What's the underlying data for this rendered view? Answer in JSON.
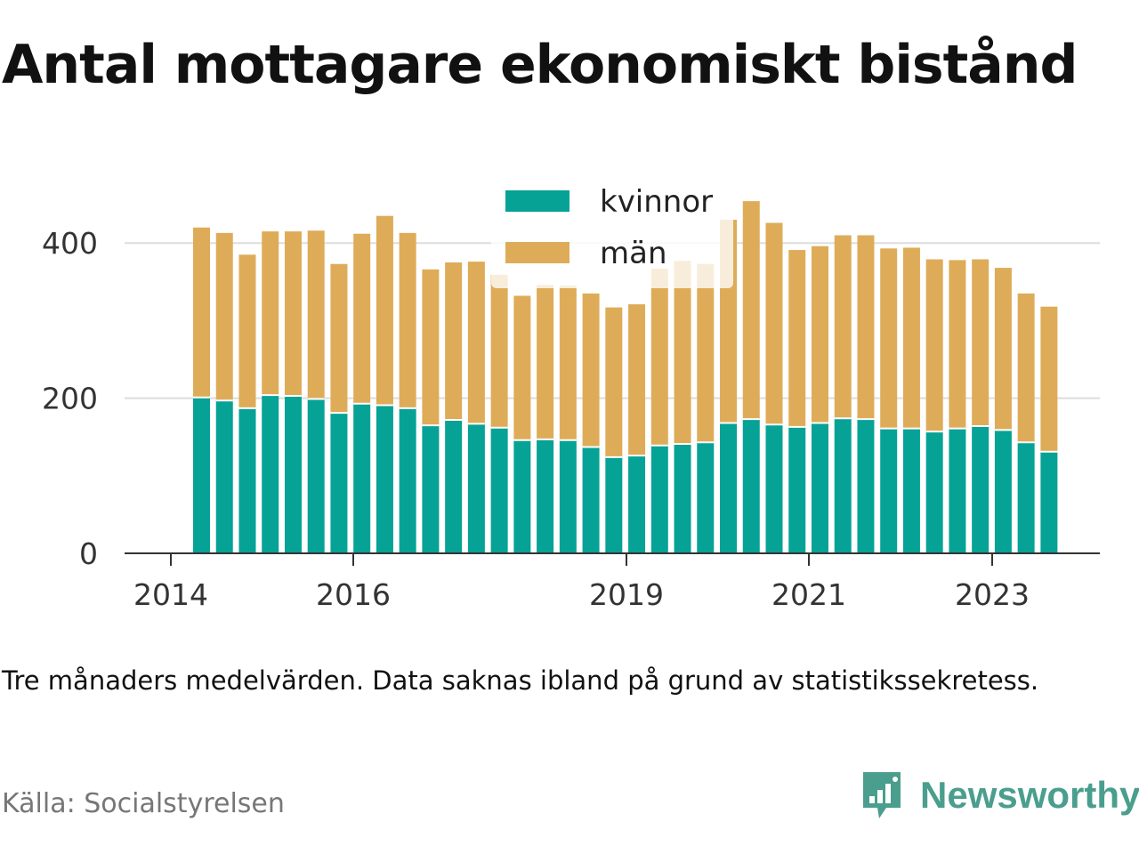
{
  "title": "Antal mottagare ekonomiskt bistånd",
  "caption": "Tre månaders medelvärden. Data saknas ibland på grund av statistikssekretess.",
  "source": "Källa: Socialstyrelsen",
  "brand": {
    "name": "Newsworthy",
    "color": "#4a9e8e",
    "icon": "newsworthy-logo-icon"
  },
  "colors": {
    "kvinnor": "#06a296",
    "man": "#deac58",
    "grid": "#dddddd",
    "axis": "#333333"
  },
  "chart_data": {
    "type": "bar",
    "stacked": true,
    "x_tick_labels": [
      "2014",
      "2016",
      "2019",
      "2021",
      "2023"
    ],
    "y_tick_labels": [
      "0",
      "200",
      "400"
    ],
    "ylim": [
      0,
      460
    ],
    "legend": [
      "kvinnor",
      "män"
    ],
    "legend_position": "top-center",
    "grid": true,
    "series": [
      {
        "name": "kvinnor",
        "values": [
          201,
          197,
          187,
          204,
          203,
          199,
          181,
          193,
          191,
          187,
          165,
          172,
          167,
          162,
          146,
          147,
          146,
          137,
          124,
          126,
          139,
          141,
          143,
          168,
          173,
          166,
          163,
          168,
          174,
          173,
          161,
          161,
          157,
          161,
          164,
          159,
          143,
          131
        ]
      },
      {
        "name": "män",
        "values": [
          219,
          216,
          198,
          211,
          212,
          217,
          192,
          219,
          244,
          226,
          201,
          203,
          209,
          197,
          186,
          199,
          199,
          198,
          193,
          195,
          228,
          236,
          230,
          262,
          281,
          260,
          228,
          228,
          236,
          237,
          232,
          233,
          222,
          217,
          215,
          209,
          192,
          187
        ]
      }
    ]
  }
}
